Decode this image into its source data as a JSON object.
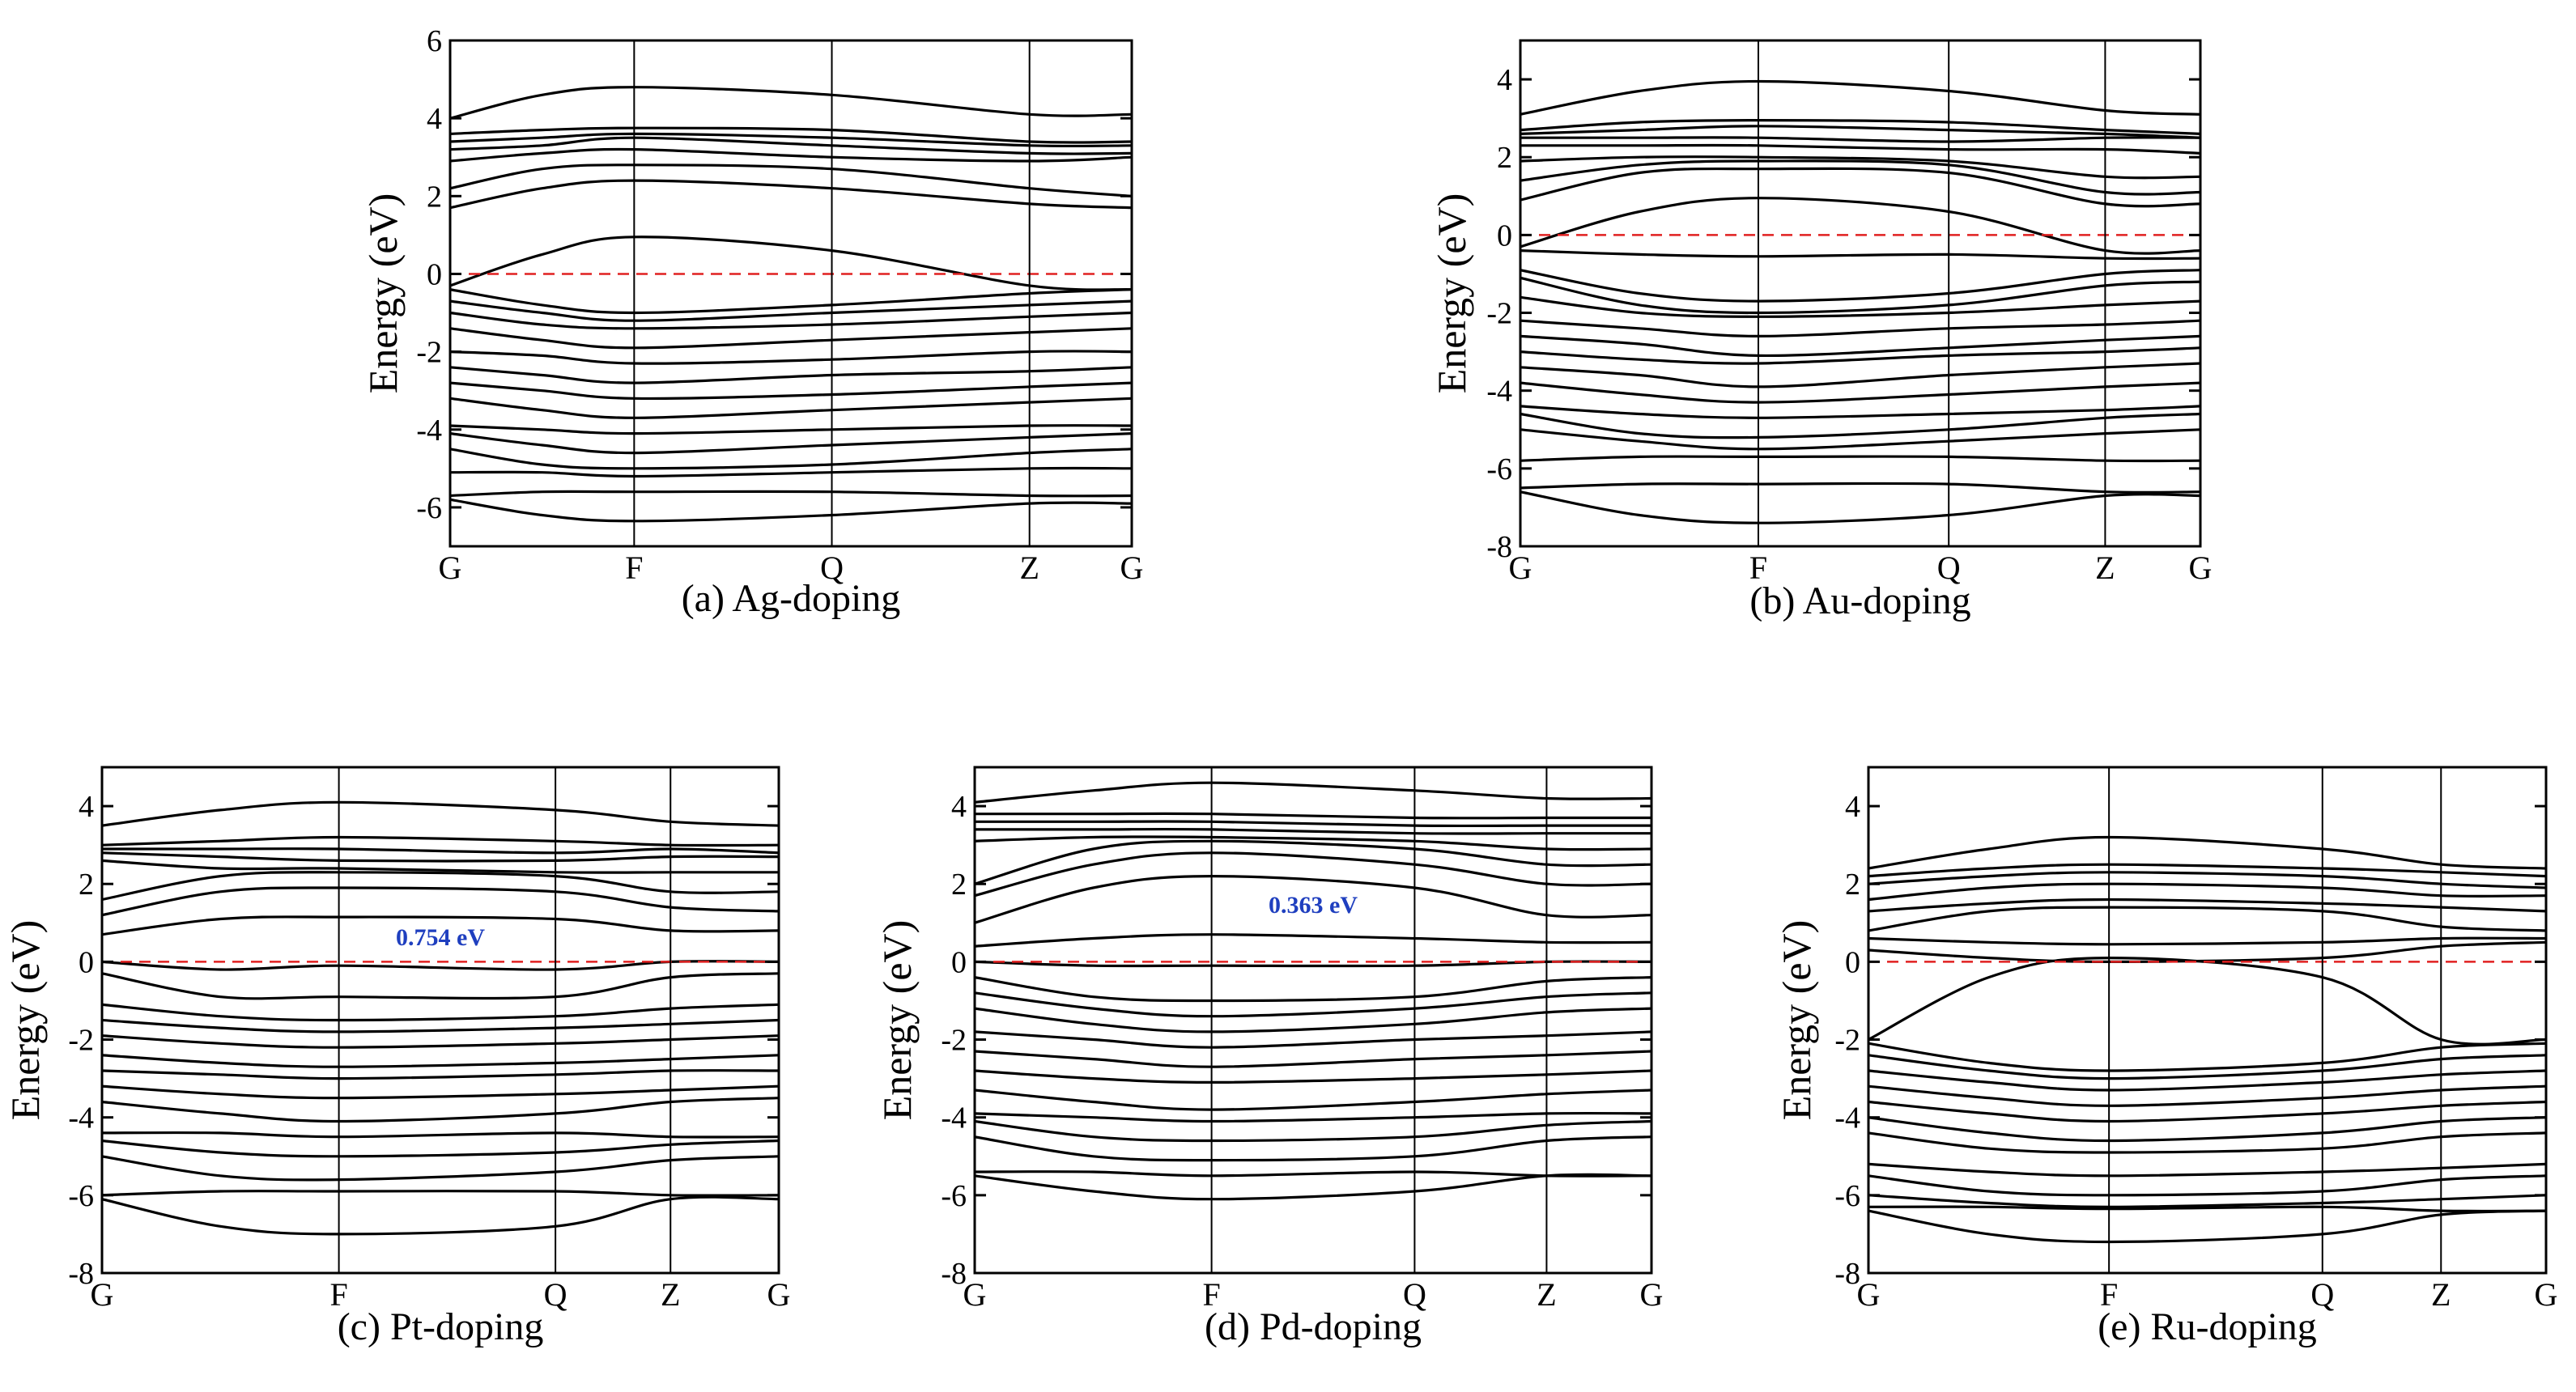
{
  "colors": {
    "band": "#000000",
    "fermi": "#e02020",
    "gap_label": "#1f3fbf",
    "frame": "#000000"
  },
  "chart_data": [
    {
      "id": "a",
      "type": "line",
      "title": "(a) Ag-doping",
      "ylabel": "Energy (eV)",
      "xlabel": "",
      "ylim": [
        -7,
        6
      ],
      "yticks": [
        -6,
        -4,
        -2,
        0,
        2,
        4,
        6
      ],
      "kpoints": [
        "G",
        "F",
        "Q",
        "Z",
        "G"
      ],
      "kpos": [
        0,
        0.27,
        0.56,
        0.85,
        1
      ],
      "fermi_level": 0,
      "gap_label": "",
      "bands": [
        [
          4.0,
          4.6,
          4.8,
          4.6,
          4.1,
          4.1
        ],
        [
          3.6,
          3.7,
          3.75,
          3.7,
          3.4,
          3.4
        ],
        [
          3.4,
          3.5,
          3.6,
          3.5,
          3.3,
          3.3
        ],
        [
          3.2,
          3.3,
          3.5,
          3.3,
          3.1,
          3.1
        ],
        [
          2.9,
          3.1,
          3.2,
          3.0,
          2.9,
          3.0
        ],
        [
          2.2,
          2.7,
          2.8,
          2.7,
          2.2,
          2.0
        ],
        [
          1.7,
          2.2,
          2.4,
          2.2,
          1.8,
          1.7
        ],
        [
          -0.3,
          0.5,
          0.95,
          0.6,
          -0.3,
          -0.4
        ],
        [
          -0.4,
          -0.8,
          -1.0,
          -0.8,
          -0.5,
          -0.4
        ],
        [
          -0.7,
          -1.0,
          -1.2,
          -1.0,
          -0.8,
          -0.7
        ],
        [
          -1.0,
          -1.3,
          -1.4,
          -1.3,
          -1.1,
          -1.0
        ],
        [
          -1.4,
          -1.7,
          -1.9,
          -1.7,
          -1.5,
          -1.4
        ],
        [
          -2.0,
          -2.1,
          -2.3,
          -2.2,
          -2.0,
          -2.0
        ],
        [
          -2.4,
          -2.6,
          -2.8,
          -2.6,
          -2.5,
          -2.4
        ],
        [
          -2.8,
          -3.0,
          -3.2,
          -3.1,
          -2.9,
          -2.8
        ],
        [
          -3.2,
          -3.5,
          -3.7,
          -3.5,
          -3.3,
          -3.2
        ],
        [
          -3.9,
          -4.0,
          -4.1,
          -4.0,
          -3.9,
          -3.9
        ],
        [
          -4.1,
          -4.4,
          -4.6,
          -4.4,
          -4.2,
          -4.1
        ],
        [
          -4.5,
          -4.9,
          -5.0,
          -4.9,
          -4.6,
          -4.5
        ],
        [
          -5.1,
          -5.1,
          -5.2,
          -5.1,
          -5.0,
          -5.0
        ],
        [
          -5.7,
          -5.6,
          -5.6,
          -5.6,
          -5.7,
          -5.7
        ],
        [
          -5.8,
          -6.2,
          -6.35,
          -6.2,
          -5.9,
          -5.9
        ]
      ]
    },
    {
      "id": "b",
      "type": "line",
      "title": "(b) Au-doping",
      "ylabel": "Energy (eV)",
      "xlabel": "",
      "ylim": [
        -8,
        5
      ],
      "yticks": [
        -8,
        -6,
        -4,
        -2,
        0,
        2,
        4
      ],
      "kpoints": [
        "G",
        "F",
        "Q",
        "Z",
        "G"
      ],
      "kpos": [
        0,
        0.35,
        0.63,
        0.86,
        1
      ],
      "fermi_level": 0,
      "gap_label": "",
      "bands": [
        [
          3.1,
          3.7,
          3.95,
          3.7,
          3.2,
          3.1
        ],
        [
          2.7,
          2.9,
          2.95,
          2.9,
          2.7,
          2.6
        ],
        [
          2.6,
          2.7,
          2.8,
          2.7,
          2.6,
          2.5
        ],
        [
          2.5,
          2.5,
          2.5,
          2.4,
          2.5,
          2.5
        ],
        [
          2.3,
          2.3,
          2.3,
          2.2,
          2.2,
          2.1
        ],
        [
          1.9,
          2.0,
          2.0,
          1.9,
          1.5,
          1.5
        ],
        [
          1.4,
          1.8,
          1.9,
          1.8,
          1.1,
          1.1
        ],
        [
          0.9,
          1.6,
          1.7,
          1.6,
          0.8,
          0.8
        ],
        [
          -0.3,
          0.6,
          0.95,
          0.6,
          -0.4,
          -0.4
        ],
        [
          -0.4,
          -0.5,
          -0.55,
          -0.5,
          -0.6,
          -0.6
        ],
        [
          -0.9,
          -1.5,
          -1.7,
          -1.5,
          -1.0,
          -0.9
        ],
        [
          -1.1,
          -1.8,
          -2.0,
          -1.8,
          -1.3,
          -1.2
        ],
        [
          -1.6,
          -2.0,
          -2.1,
          -2.0,
          -1.8,
          -1.7
        ],
        [
          -2.2,
          -2.4,
          -2.6,
          -2.4,
          -2.3,
          -2.2
        ],
        [
          -2.6,
          -2.8,
          -3.1,
          -2.9,
          -2.7,
          -2.6
        ],
        [
          -3.0,
          -3.2,
          -3.3,
          -3.1,
          -3.0,
          -2.9
        ],
        [
          -3.4,
          -3.6,
          -3.9,
          -3.6,
          -3.4,
          -3.3
        ],
        [
          -3.8,
          -4.1,
          -4.3,
          -4.1,
          -3.9,
          -3.8
        ],
        [
          -4.4,
          -4.6,
          -4.7,
          -4.6,
          -4.5,
          -4.4
        ],
        [
          -4.6,
          -5.1,
          -5.2,
          -5.0,
          -4.7,
          -4.6
        ],
        [
          -5.0,
          -5.3,
          -5.5,
          -5.3,
          -5.1,
          -5.0
        ],
        [
          -5.8,
          -5.7,
          -5.7,
          -5.7,
          -5.8,
          -5.8
        ],
        [
          -6.5,
          -6.4,
          -6.4,
          -6.4,
          -6.6,
          -6.6
        ],
        [
          -6.6,
          -7.2,
          -7.4,
          -7.2,
          -6.7,
          -6.7
        ]
      ]
    },
    {
      "id": "c",
      "type": "line",
      "title": "(c) Pt-doping",
      "ylabel": "Energy (eV)",
      "xlabel": "",
      "ylim": [
        -8,
        5
      ],
      "yticks": [
        -8,
        -6,
        -4,
        -2,
        0,
        2,
        4
      ],
      "kpoints": [
        "G",
        "F",
        "Q",
        "Z",
        "G"
      ],
      "kpos": [
        0,
        0.35,
        0.67,
        0.84,
        1
      ],
      "fermi_level": 0,
      "gap_label": "0.754 eV",
      "bands": [
        [
          3.5,
          3.9,
          4.1,
          3.9,
          3.6,
          3.5
        ],
        [
          3.0,
          3.1,
          3.2,
          3.1,
          3.0,
          3.0
        ],
        [
          2.9,
          2.9,
          2.9,
          2.8,
          2.9,
          2.8
        ],
        [
          2.8,
          2.7,
          2.6,
          2.6,
          2.7,
          2.7
        ],
        [
          2.6,
          2.4,
          2.4,
          2.3,
          2.3,
          2.3
        ],
        [
          1.6,
          2.2,
          2.3,
          2.2,
          1.8,
          1.8
        ],
        [
          1.2,
          1.8,
          1.9,
          1.8,
          1.4,
          1.3
        ],
        [
          0.7,
          1.1,
          1.15,
          1.1,
          0.8,
          0.8
        ],
        [
          0.0,
          -0.2,
          -0.1,
          -0.2,
          0.0,
          0.0
        ],
        [
          -0.3,
          -0.9,
          -0.9,
          -0.9,
          -0.4,
          -0.3
        ],
        [
          -1.1,
          -1.4,
          -1.5,
          -1.4,
          -1.2,
          -1.1
        ],
        [
          -1.5,
          -1.7,
          -1.8,
          -1.7,
          -1.6,
          -1.5
        ],
        [
          -1.9,
          -2.1,
          -2.2,
          -2.1,
          -2.0,
          -1.9
        ],
        [
          -2.4,
          -2.6,
          -2.7,
          -2.6,
          -2.5,
          -2.4
        ],
        [
          -2.8,
          -2.9,
          -3.0,
          -2.9,
          -2.8,
          -2.8
        ],
        [
          -3.2,
          -3.4,
          -3.5,
          -3.4,
          -3.3,
          -3.2
        ],
        [
          -3.6,
          -3.9,
          -4.1,
          -3.9,
          -3.6,
          -3.5
        ],
        [
          -4.4,
          -4.4,
          -4.5,
          -4.4,
          -4.5,
          -4.5
        ],
        [
          -4.6,
          -4.9,
          -5.0,
          -4.9,
          -4.7,
          -4.6
        ],
        [
          -5.0,
          -5.5,
          -5.6,
          -5.4,
          -5.1,
          -5.0
        ],
        [
          -6.0,
          -5.9,
          -5.9,
          -5.9,
          -6.0,
          -6.0
        ],
        [
          -6.1,
          -6.8,
          -7.0,
          -6.8,
          -6.1,
          -6.1
        ]
      ]
    },
    {
      "id": "d",
      "type": "line",
      "title": "(d) Pd-doping",
      "ylabel": "Energy (eV)",
      "xlabel": "",
      "ylim": [
        -8,
        5
      ],
      "yticks": [
        -8,
        -6,
        -4,
        -2,
        0,
        2,
        4
      ],
      "kpoints": [
        "G",
        "F",
        "Q",
        "Z",
        "G"
      ],
      "kpos": [
        0,
        0.35,
        0.65,
        0.845,
        1
      ],
      "fermi_level": 0,
      "gap_label": "0.363 eV",
      "bands": [
        [
          4.1,
          4.4,
          4.6,
          4.4,
          4.2,
          4.2
        ],
        [
          3.8,
          3.8,
          3.8,
          3.7,
          3.7,
          3.7
        ],
        [
          3.6,
          3.6,
          3.6,
          3.5,
          3.5,
          3.5
        ],
        [
          3.4,
          3.4,
          3.4,
          3.3,
          3.3,
          3.3
        ],
        [
          3.1,
          3.2,
          3.2,
          3.1,
          2.9,
          2.9
        ],
        [
          2.0,
          2.9,
          3.1,
          2.9,
          2.5,
          2.5
        ],
        [
          1.7,
          2.5,
          2.8,
          2.5,
          2.0,
          2.0
        ],
        [
          1.0,
          1.9,
          2.2,
          1.9,
          1.2,
          1.2
        ],
        [
          0.4,
          0.6,
          0.7,
          0.6,
          0.5,
          0.5
        ],
        [
          0.0,
          -0.1,
          -0.1,
          -0.1,
          0.0,
          0.0
        ],
        [
          -0.4,
          -0.9,
          -1.0,
          -0.9,
          -0.5,
          -0.4
        ],
        [
          -0.8,
          -1.2,
          -1.4,
          -1.2,
          -0.9,
          -0.8
        ],
        [
          -1.2,
          -1.6,
          -1.8,
          -1.6,
          -1.3,
          -1.2
        ],
        [
          -1.8,
          -2.0,
          -2.2,
          -2.0,
          -1.9,
          -1.8
        ],
        [
          -2.3,
          -2.5,
          -2.7,
          -2.5,
          -2.4,
          -2.3
        ],
        [
          -2.8,
          -3.0,
          -3.1,
          -3.0,
          -2.9,
          -2.8
        ],
        [
          -3.3,
          -3.6,
          -3.8,
          -3.6,
          -3.4,
          -3.3
        ],
        [
          -3.9,
          -4.0,
          -4.1,
          -4.0,
          -3.9,
          -3.9
        ],
        [
          -4.1,
          -4.5,
          -4.6,
          -4.5,
          -4.2,
          -4.1
        ],
        [
          -4.5,
          -5.0,
          -5.1,
          -5.0,
          -4.6,
          -4.5
        ],
        [
          -5.4,
          -5.4,
          -5.5,
          -5.4,
          -5.5,
          -5.5
        ],
        [
          -5.5,
          -5.9,
          -6.1,
          -5.9,
          -5.5,
          -5.5
        ]
      ]
    },
    {
      "id": "e",
      "type": "line",
      "title": "(e) Ru-doping",
      "ylabel": "Energy (eV)",
      "xlabel": "",
      "ylim": [
        -8,
        5
      ],
      "yticks": [
        -8,
        -6,
        -4,
        -2,
        0,
        2,
        4
      ],
      "kpoints": [
        "G",
        "F",
        "Q",
        "Z",
        "G"
      ],
      "kpos": [
        0,
        0.355,
        0.67,
        0.845,
        1
      ],
      "fermi_level": 0,
      "gap_label": "",
      "bands": [
        [
          2.4,
          2.9,
          3.2,
          2.9,
          2.5,
          2.4
        ],
        [
          2.2,
          2.4,
          2.5,
          2.4,
          2.3,
          2.2
        ],
        [
          2.0,
          2.2,
          2.3,
          2.2,
          2.0,
          1.9
        ],
        [
          1.6,
          1.9,
          2.0,
          1.9,
          1.7,
          1.7
        ],
        [
          1.3,
          1.5,
          1.6,
          1.5,
          1.4,
          1.3
        ],
        [
          0.8,
          1.3,
          1.4,
          1.3,
          0.9,
          0.8
        ],
        [
          0.6,
          0.5,
          0.45,
          0.5,
          0.6,
          0.6
        ],
        [
          0.3,
          0.1,
          0.0,
          0.1,
          0.4,
          0.5
        ],
        [
          -2.0,
          -0.4,
          0.1,
          -0.4,
          -2.0,
          -2.0
        ],
        [
          -2.1,
          -2.6,
          -2.8,
          -2.6,
          -2.2,
          -2.1
        ],
        [
          -2.4,
          -2.8,
          -3.0,
          -2.8,
          -2.5,
          -2.4
        ],
        [
          -2.8,
          -3.1,
          -3.3,
          -3.1,
          -2.9,
          -2.8
        ],
        [
          -3.2,
          -3.5,
          -3.7,
          -3.5,
          -3.3,
          -3.2
        ],
        [
          -3.6,
          -3.9,
          -4.1,
          -3.9,
          -3.7,
          -3.6
        ],
        [
          -4.0,
          -4.4,
          -4.6,
          -4.4,
          -4.1,
          -4.0
        ],
        [
          -4.4,
          -4.8,
          -4.9,
          -4.8,
          -4.5,
          -4.4
        ],
        [
          -5.2,
          -5.4,
          -5.5,
          -5.4,
          -5.3,
          -5.2
        ],
        [
          -5.5,
          -5.9,
          -6.0,
          -5.9,
          -5.6,
          -5.5
        ],
        [
          -6.0,
          -6.2,
          -6.3,
          -6.2,
          -6.1,
          -6.0
        ],
        [
          -6.3,
          -6.3,
          -6.35,
          -6.3,
          -6.4,
          -6.4
        ],
        [
          -6.4,
          -7.0,
          -7.2,
          -7.0,
          -6.5,
          -6.4
        ]
      ]
    }
  ]
}
